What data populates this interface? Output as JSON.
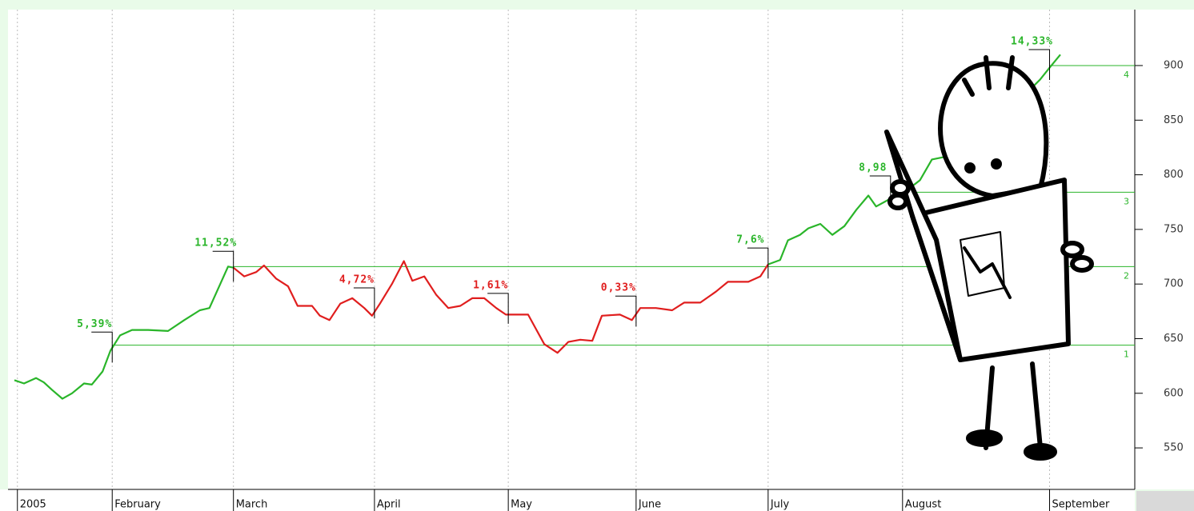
{
  "chart_data": {
    "type": "line",
    "xlim": [
      0,
      186.7
    ],
    "ylim": [
      512,
      960
    ],
    "xticks": [
      {
        "value": 0.5,
        "label": "2005"
      },
      {
        "value": 16.3,
        "label": "February"
      },
      {
        "value": 36.5,
        "label": "March"
      },
      {
        "value": 60,
        "label": "April"
      },
      {
        "value": 82.3,
        "label": "May"
      },
      {
        "value": 103.6,
        "label": "June"
      },
      {
        "value": 125.6,
        "label": "July"
      },
      {
        "value": 148,
        "label": "August"
      },
      {
        "value": 172.5,
        "label": "September"
      }
    ],
    "yticks": [
      550,
      600,
      650,
      700,
      750,
      800,
      850,
      900
    ],
    "grid": true,
    "x": [
      0,
      1.6,
      3.6,
      4.9,
      6.3,
      8,
      9.6,
      11.6,
      12.9,
      14.7,
      16,
      17.6,
      19.6,
      22.3,
      25.6,
      28.3,
      30.9,
      32.5,
      34.3,
      35.6,
      36.5,
      38.3,
      40.3,
      41.6,
      43.6,
      45.6,
      47.2,
      49.6,
      50.9,
      52.5,
      54.3,
      56.3,
      58.3,
      59.6,
      60.9,
      62.9,
      64.9,
      66.3,
      68.3,
      70.3,
      72.3,
      74.3,
      76.3,
      78.3,
      80.3,
      81.9,
      85.6,
      88.3,
      90.5,
      92.3,
      94.3,
      96.3,
      97.9,
      100.9,
      102.9,
      104.3,
      106.9,
      109.6,
      111.6,
      114.3,
      116.9,
      118.9,
      122.3,
      124.3,
      125.6,
      127.6,
      128.9,
      130.9,
      132.3,
      134.3,
      136.3,
      138.3,
      140.3,
      142.3,
      143.6,
      145.6,
      148.3,
      150.9,
      152.9,
      155.6,
      158.9,
      162.9,
      166.9,
      169.6,
      170.9,
      172.5,
      174.3
    ],
    "series": [
      {
        "color": "#2ab52a",
        "values": [
          612,
          609,
          614,
          610,
          603,
          595,
          600,
          609,
          608,
          620,
          639,
          653,
          658,
          658,
          657,
          667,
          676,
          678,
          700,
          716,
          715,
          null,
          null,
          null,
          null,
          null,
          null,
          null,
          null,
          null,
          null,
          null,
          null,
          null,
          null,
          null,
          null,
          null,
          null,
          null,
          null,
          null,
          null,
          null,
          null,
          null,
          null,
          null,
          null,
          null,
          null,
          null,
          null,
          null,
          null,
          null,
          null,
          null,
          null,
          null,
          null,
          null,
          null,
          null,
          718,
          722,
          740,
          745,
          751,
          755,
          745,
          753,
          768,
          781,
          771,
          777,
          784,
          795,
          814,
          817,
          836,
          858,
          872,
          880,
          887,
          898,
          910
        ]
      },
      {
        "color": "#e01e1e",
        "values": [
          null,
          null,
          null,
          null,
          null,
          null,
          null,
          null,
          null,
          null,
          null,
          null,
          null,
          null,
          null,
          null,
          null,
          null,
          null,
          null,
          715,
          707,
          711,
          717,
          705,
          698,
          680,
          680,
          671,
          667,
          682,
          687,
          678,
          671,
          682,
          700,
          721,
          703,
          707,
          690,
          678,
          680,
          687,
          687,
          678,
          672,
          672,
          645,
          637,
          647,
          649,
          648,
          671,
          672,
          667,
          678,
          678,
          676,
          683,
          683,
          693,
          702,
          702,
          707,
          718,
          null,
          null,
          null,
          null,
          null,
          null,
          null,
          null,
          null,
          null,
          null,
          null,
          null,
          null,
          null,
          null,
          null,
          null,
          null,
          null,
          null,
          null
        ]
      }
    ],
    "levels": [
      {
        "label": "1",
        "value": 644,
        "x": 16.3,
        "color": "#2ab52a"
      },
      {
        "label": "2",
        "value": 716,
        "x": 36.5,
        "color": "#2ab52a"
      },
      {
        "label": "3",
        "value": 784,
        "x": 146,
        "color": "#2ab52a"
      },
      {
        "label": "4",
        "value": 900,
        "x": 172.5,
        "color": "#2ab52a"
      }
    ],
    "annotations": [
      {
        "text": "5,39%",
        "x": 16.3,
        "y": 656,
        "color": "#2ab52a"
      },
      {
        "text": "11,52%",
        "x": 36.5,
        "y": 730,
        "color": "#2ab52a"
      },
      {
        "text": "4,72%",
        "x": 60,
        "y": 696.5,
        "color": "#e01e1e"
      },
      {
        "text": "1,61%",
        "x": 82.3,
        "y": 691.4,
        "color": "#e01e1e"
      },
      {
        "text": "0,33%",
        "x": 103.6,
        "y": 689,
        "color": "#e01e1e"
      },
      {
        "text": "7,6%",
        "x": 125.6,
        "y": 733,
        "color": "#2ab52a"
      },
      {
        "text": "8,98",
        "x": 146,
        "y": 799,
        "color": "#2ab52a"
      },
      {
        "text": "14,33%",
        "x": 172.5,
        "y": 914.6,
        "color": "#2ab52a"
      }
    ]
  }
}
